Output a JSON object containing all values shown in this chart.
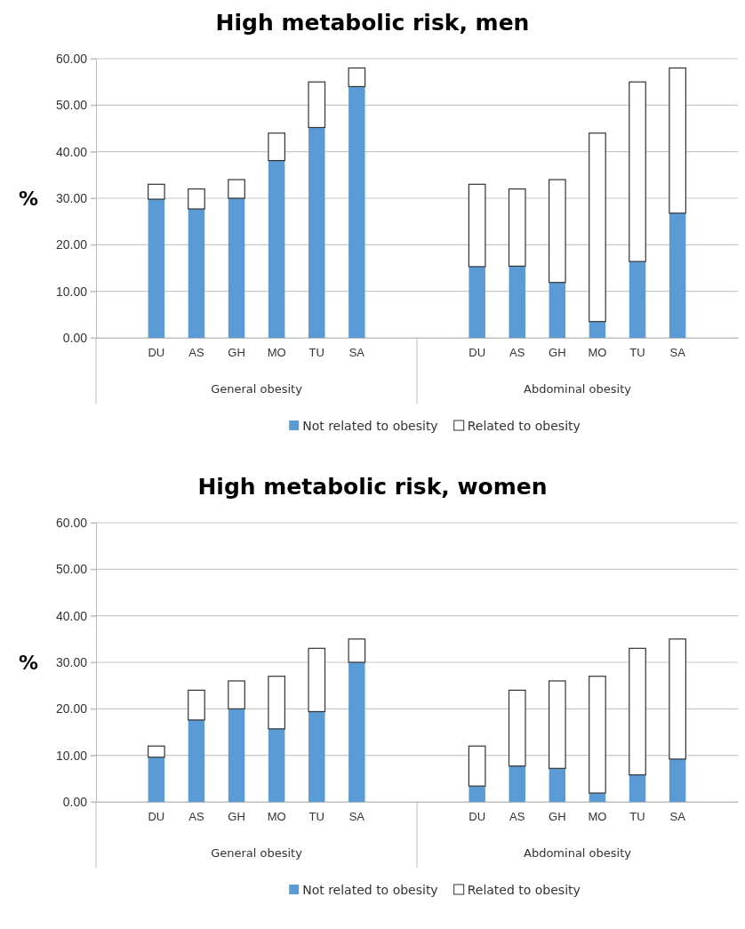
{
  "chart_data": [
    {
      "type": "bar",
      "title": "High metabolic risk, men",
      "ylabel": "%",
      "stacked": true,
      "grid": "y",
      "legend": "bottom",
      "categories": [
        null,
        "DU",
        "AS",
        "GH",
        "MO",
        "TU",
        "SA",
        null,
        null,
        "DU",
        "AS",
        "GH",
        "MO",
        "TU",
        "SA",
        null
      ],
      "ylim": [
        0,
        60
      ],
      "yticks": [
        {
          "value": 0,
          "label": "0.00"
        },
        {
          "value": 10,
          "label": "10.00"
        },
        {
          "value": 20,
          "label": "20.00"
        },
        {
          "value": 30,
          "label": "30.00"
        },
        {
          "value": 40,
          "label": "40.00"
        },
        {
          "value": 50,
          "label": "50.00"
        },
        {
          "value": 60,
          "label": "60.00"
        }
      ],
      "annotations": [
        "General obesity",
        "Abdominal obesity"
      ],
      "series": [
        {
          "name": "Not related to obesity",
          "color": "#5b9bd5",
          "values": [
            null,
            29.8,
            27.7,
            30,
            38.1,
            45.2,
            54,
            null,
            null,
            15.3,
            15.4,
            11.9,
            3.5,
            16.4,
            26.8,
            null
          ]
        },
        {
          "name": "Related to obesity",
          "color": "#ffffff",
          "values": [
            null,
            3.2,
            4.3,
            4,
            5.9,
            9.8,
            4,
            null,
            null,
            17.7,
            16.6,
            22.1,
            40.5,
            38.6,
            31.2,
            null
          ]
        }
      ]
    },
    {
      "type": "bar",
      "title": "High metabolic risk, women",
      "ylabel": "%",
      "stacked": true,
      "grid": "y",
      "legend": "bottom",
      "categories": [
        null,
        "DU",
        "AS",
        "GH",
        "MO",
        "TU",
        "SA",
        null,
        null,
        "DU",
        "AS",
        "GH",
        "MO",
        "TU",
        "SA",
        null
      ],
      "ylim": [
        0,
        60
      ],
      "yticks": [
        {
          "value": 0,
          "label": "0.00"
        },
        {
          "value": 10,
          "label": "10.00"
        },
        {
          "value": 20,
          "label": "20.00"
        },
        {
          "value": 30,
          "label": "30.00"
        },
        {
          "value": 40,
          "label": "40.00"
        },
        {
          "value": 50,
          "label": "50.00"
        },
        {
          "value": 60,
          "label": "60.00"
        }
      ],
      "annotations": [
        "General obesity",
        "Abdominal obesity"
      ],
      "series": [
        {
          "name": "Not related to obesity",
          "color": "#5b9bd5",
          "values": [
            null,
            9.6,
            17.6,
            20,
            15.7,
            19.4,
            30,
            null,
            null,
            3.4,
            7.7,
            7.2,
            1.9,
            5.8,
            9.2,
            null
          ]
        },
        {
          "name": "Related to obesity",
          "color": "#ffffff",
          "values": [
            null,
            2.4,
            6.4,
            6,
            11.3,
            13.6,
            5,
            null,
            null,
            8.6,
            16.3,
            18.8,
            25.1,
            27.2,
            25.8,
            null
          ]
        }
      ]
    }
  ]
}
